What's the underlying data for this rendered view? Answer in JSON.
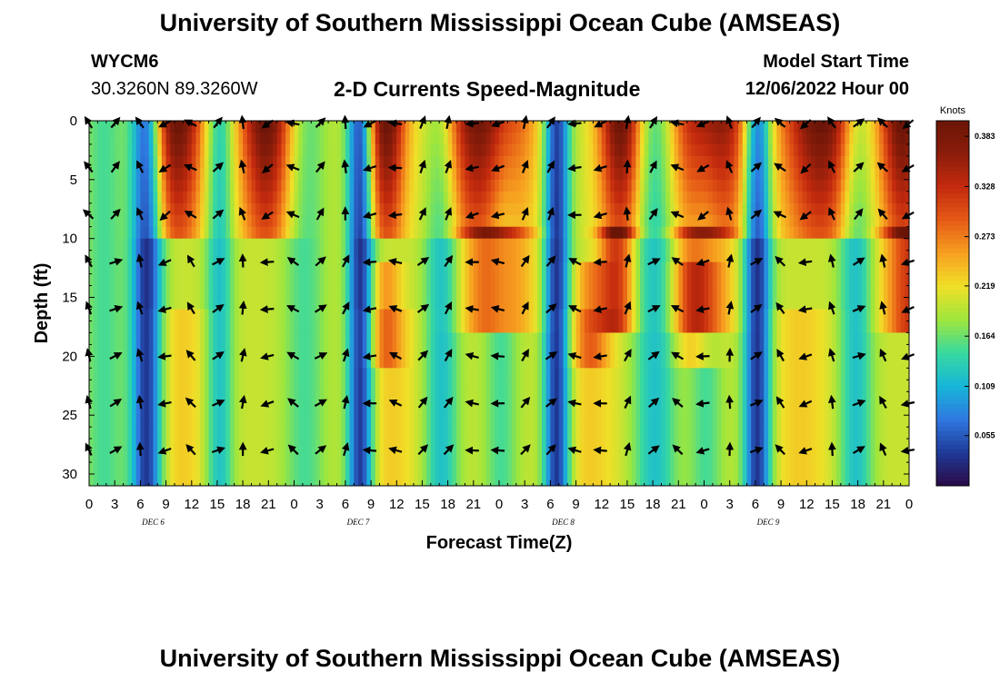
{
  "header": {
    "title": "University of Southern Mississippi Ocean Cube (AMSEAS)",
    "station_id": "WYCM6",
    "coordinates": "30.3260N  89.3260W",
    "plot_title": "2-D Currents Speed-Magnitude",
    "model_start_label": "Model Start Time",
    "model_start_value": "12/06/2022 Hour 00"
  },
  "footer": {
    "title": "University of Southern Mississippi Ocean Cube (AMSEAS)"
  },
  "chart_data": {
    "type": "heatmap",
    "title": "2-D Currents Speed-Magnitude",
    "xlabel": "Forecast Time(Z)",
    "ylabel": "Depth (ft)",
    "x_tick_labels": [
      "0",
      "3",
      "6",
      "9",
      "12",
      "15",
      "18",
      "21",
      "0",
      "3",
      "6",
      "9",
      "12",
      "15",
      "18",
      "21",
      "0",
      "3",
      "6",
      "9",
      "12",
      "15",
      "18",
      "21",
      "0",
      "3",
      "6",
      "9",
      "12",
      "15",
      "18",
      "21",
      "0"
    ],
    "x_range_hours": [
      0,
      96
    ],
    "date_labels": [
      {
        "hour": 7.5,
        "text": "DEC 6"
      },
      {
        "hour": 31.5,
        "text": "DEC 7"
      },
      {
        "hour": 55.5,
        "text": "DEC 8"
      },
      {
        "hour": 79.5,
        "text": "DEC 9"
      }
    ],
    "y_tick_labels": [
      "0",
      "5",
      "10",
      "15",
      "20",
      "25",
      "30"
    ],
    "y_range_ft": [
      0,
      31
    ],
    "colorbar": {
      "unit": "Knots",
      "tick_labels": [
        "0.383",
        "0.328",
        "0.273",
        "0.219",
        "0.164",
        "0.109",
        "0.055"
      ],
      "range": [
        0,
        0.4
      ],
      "colors": [
        "#2a0a45",
        "#1f3a98",
        "#2f78e0",
        "#17b6d8",
        "#38d9a0",
        "#9ee63c",
        "#f0e028",
        "#f7a020",
        "#e55a16",
        "#c32a0e",
        "#8c1d0a",
        "#6a1508"
      ]
    },
    "vector_depths_ft": [
      0,
      4,
      8,
      12,
      16,
      20,
      24,
      28
    ],
    "vector_hours": [
      0,
      3,
      6,
      9,
      12,
      15,
      18,
      21,
      24,
      27,
      30,
      33,
      36,
      39,
      42,
      45,
      48,
      51,
      54,
      57,
      60,
      63,
      66,
      69,
      72,
      75,
      78,
      81,
      84,
      87,
      90,
      93,
      96
    ]
  }
}
